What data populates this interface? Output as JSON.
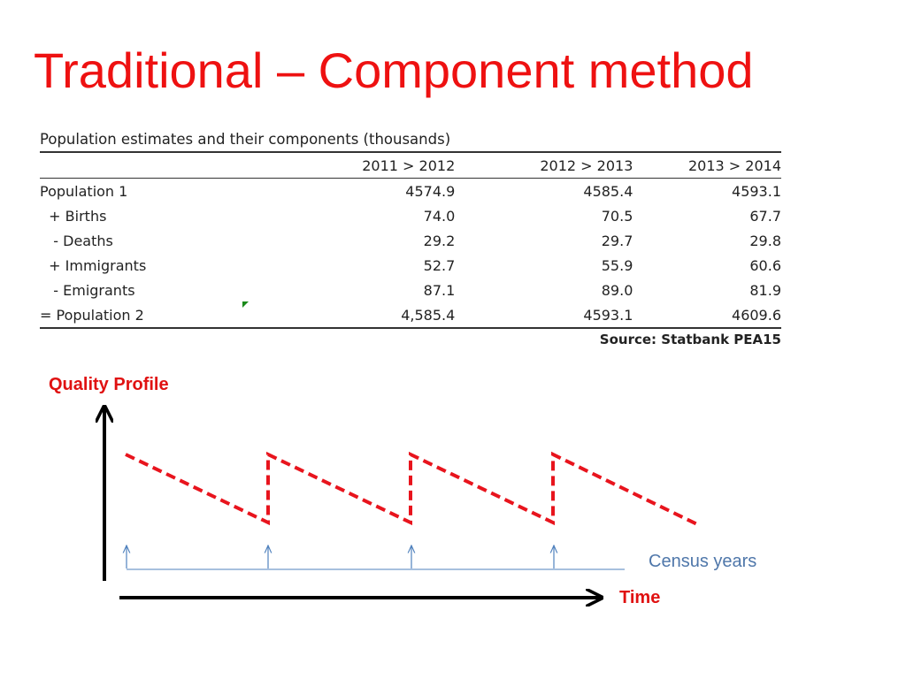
{
  "title": "Traditional – Component method",
  "table": {
    "caption": "Population  estimates and their components (thousands)",
    "columns": [
      "",
      "2011 > 2012",
      "2012 > 2013",
      "2013 > 2014"
    ],
    "rows": [
      {
        "label": "Population 1",
        "values": [
          "4574.9",
          "4585.4",
          "4593.1"
        ]
      },
      {
        "label": "  + Births",
        "values": [
          "74.0",
          "70.5",
          "67.7"
        ]
      },
      {
        "label": "   - Deaths",
        "values": [
          "29.2",
          "29.7",
          "29.8"
        ]
      },
      {
        "label": "  + Immigrants",
        "values": [
          "52.7",
          "55.9",
          "60.6"
        ]
      },
      {
        "label": "   - Emigrants",
        "values": [
          "87.1",
          "89.0",
          "81.9"
        ]
      },
      {
        "label": "= Population 2",
        "values": [
          "4,585.4",
          "4593.1",
          "4609.6"
        ]
      }
    ],
    "source": "Source: Statbank PEA15"
  },
  "diagram": {
    "y_axis_label": "Quality Profile",
    "x_axis_label": "Time",
    "census_label": "Census years",
    "colors": {
      "quality_line": "#e8141d",
      "census_line": "#4f81bd",
      "axis": "#000000"
    }
  }
}
